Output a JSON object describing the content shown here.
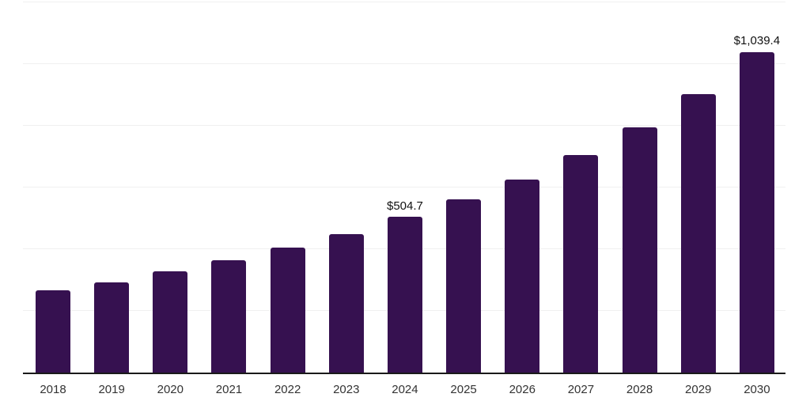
{
  "chart_data": {
    "type": "bar",
    "title": "",
    "xlabel": "",
    "ylabel": "",
    "categories": [
      "2018",
      "2019",
      "2020",
      "2021",
      "2022",
      "2023",
      "2024",
      "2025",
      "2026",
      "2027",
      "2028",
      "2029",
      "2030"
    ],
    "values": [
      267.6,
      293.1,
      327.5,
      364.4,
      405.2,
      449.8,
      504.7,
      560.7,
      625.7,
      706.0,
      793.9,
      902.2,
      1039.4
    ],
    "point_labels": [
      "",
      "",
      "",
      "",
      "",
      "",
      "$504.7",
      "",
      "",
      "",
      "",
      "",
      "$1,039.4"
    ],
    "ylim": [
      0,
      1200
    ],
    "grid": true,
    "grid_interval": 200,
    "legend_position": "none",
    "colors": {
      "bar": "#361150",
      "gridline": "#f0f0f0",
      "axis_line": "#1a1a1a",
      "tick_label": "#333333",
      "data_label": "#111111",
      "background": "#ffffff"
    }
  }
}
